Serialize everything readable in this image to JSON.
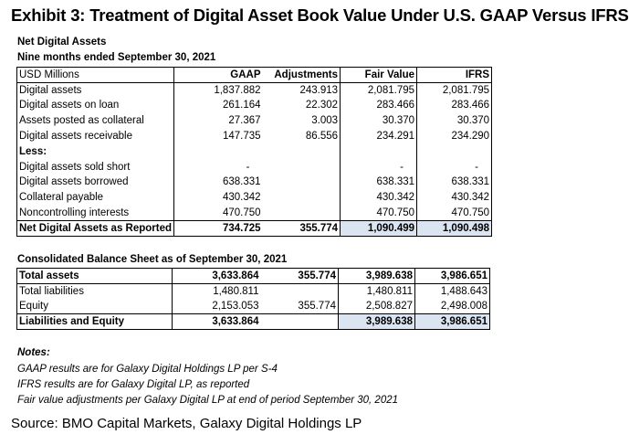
{
  "title": "Exhibit 3: Treatment of Digital Asset Book Value Under U.S. GAAP Versus IFRS",
  "section1": {
    "heading": "Net Digital Assets",
    "subheading": "Nine months ended September 30, 2021",
    "columns": [
      "USD Millions",
      "GAAP",
      "Adjustments",
      "Fair Value",
      "IFRS"
    ],
    "rows": [
      {
        "label": "Digital assets",
        "gaap": "1,837.882",
        "adj": "243.913",
        "fv": "2,081.795",
        "ifrs": "2,081.795"
      },
      {
        "label": "Digital assets on loan",
        "gaap": "261.164",
        "adj": "22.302",
        "fv": "283.466",
        "ifrs": "283.466"
      },
      {
        "label": "Assets posted as collateral",
        "gaap": "27.367",
        "adj": "3.003",
        "fv": "30.370",
        "ifrs": "30.370"
      },
      {
        "label": "Digital assets receivable",
        "gaap": "147.735",
        "adj": "86.556",
        "fv": "234.291",
        "ifrs": "234.290"
      },
      {
        "label": "Less:",
        "gaap": "",
        "adj": "",
        "fv": "",
        "ifrs": ""
      },
      {
        "label": "Digital assets sold short",
        "gaap": "-",
        "adj": "",
        "fv": "-",
        "ifrs": "-"
      },
      {
        "label": "Digital assets borrowed",
        "gaap": "638.331",
        "adj": "",
        "fv": "638.331",
        "ifrs": "638.331"
      },
      {
        "label": "Collateral payable",
        "gaap": "430.342",
        "adj": "",
        "fv": "430.342",
        "ifrs": "430.342"
      },
      {
        "label": "Noncontrolling interests",
        "gaap": "470.750",
        "adj": "",
        "fv": "470.750",
        "ifrs": "470.750"
      }
    ],
    "total": {
      "label": "Net Digital Assets as Reported",
      "gaap": "734.725",
      "adj": "355.774",
      "fv": "1,090.499",
      "ifrs": "1,090.498"
    }
  },
  "section2": {
    "heading": "Consolidated Balance Sheet as of September 30, 2021",
    "rows": [
      {
        "label": "Total assets",
        "gaap": "3,633.864",
        "adj": "355.774",
        "fv": "3,989.638",
        "ifrs": "3,986.651"
      },
      {
        "label": "Total liabilities",
        "gaap": "1,480.811",
        "adj": "",
        "fv": "1,480.811",
        "ifrs": "1,488.643"
      },
      {
        "label": "Equity",
        "gaap": "2,153.053",
        "adj": "355.774",
        "fv": "2,508.827",
        "ifrs": "2,498.008"
      },
      {
        "label": "Liabilities and Equity",
        "gaap": "3,633.864",
        "adj": "",
        "fv": "3,989.638",
        "ifrs": "3,986.651"
      }
    ]
  },
  "notes": {
    "title": "Notes:",
    "lines": [
      "GAAP results are for Galaxy Digital Holdings LP per S-4",
      "IFRS results are for Galaxy Digital LP, as reported",
      "Fair value adjustments per Galaxy Digital LP at end of period September 30, 2021"
    ]
  },
  "source": "Source: BMO Capital Markets, Galaxy Digital Holdings LP"
}
